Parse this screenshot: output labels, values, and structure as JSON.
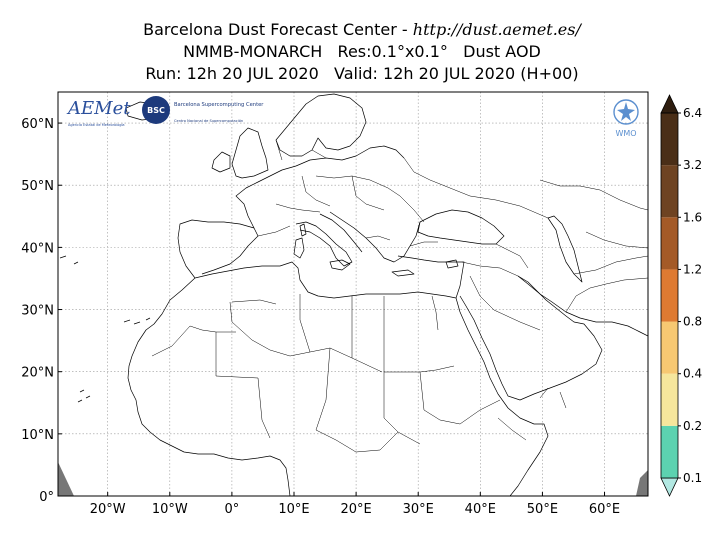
{
  "header": {
    "line1_prefix": "Barcelona Dust Forecast Center - ",
    "line1_url": "http://dust.aemet.es/",
    "line2": "NMMB-MONARCH   Res:0.1°x0.1°   Dust AOD",
    "line3": "Run: 12h 20 JUL 2020   Valid: 12h 20 JUL 2020 (H+00)"
  },
  "map": {
    "lon_range": [
      -28,
      67
    ],
    "lat_range": [
      0,
      65
    ],
    "grid": true,
    "x_ticks": [
      "20°W",
      "10°W",
      "0°",
      "10°E",
      "20°E",
      "30°E",
      "40°E",
      "50°E",
      "60°E"
    ],
    "x_tick_values": [
      -20,
      -10,
      0,
      10,
      20,
      30,
      40,
      50,
      60
    ],
    "y_ticks": [
      "0°",
      "10°N",
      "20°N",
      "30°N",
      "40°N",
      "50°N",
      "60°N"
    ],
    "y_tick_values": [
      0,
      10,
      20,
      30,
      40,
      50,
      60
    ]
  },
  "logos": {
    "aemet": "AEMet",
    "aemet_sub": "Agencia Estatal de Meteorología",
    "bsc_badge": "BSC",
    "bsc_name": "Barcelona Supercomputing Center",
    "bsc_sub": "Centro Nacional de Supercomputación",
    "wmo": "WMO"
  },
  "colorbar": {
    "labels": [
      "0.1",
      "0.2",
      "0.4",
      "0.8",
      "1.2",
      "1.6",
      "3.2",
      "6.4"
    ],
    "colors": [
      "#b2e8e2",
      "#5cd2b0",
      "#f6e69c",
      "#f7c872",
      "#de7a32",
      "#a45a27",
      "#6e4322",
      "#4a2e17",
      "#2e1d0f"
    ],
    "extend": "both"
  }
}
